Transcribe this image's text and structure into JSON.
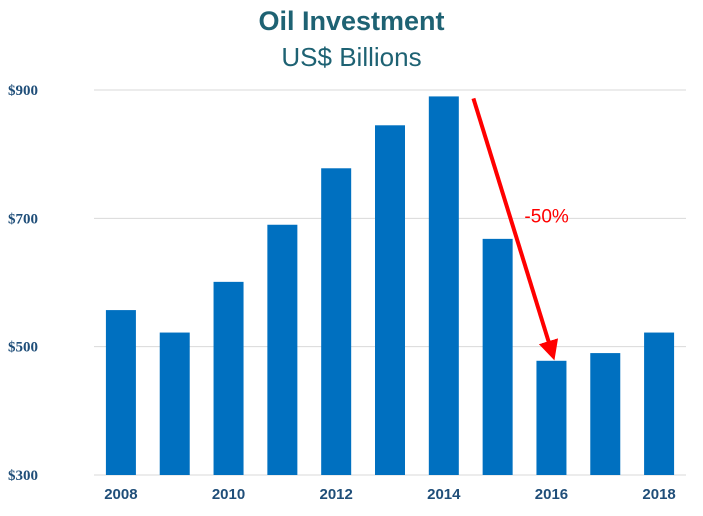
{
  "chart_data": {
    "type": "bar",
    "title": "Oil Investment",
    "subtitle": "US$ Billions",
    "categories": [
      "2008",
      "2009",
      "2010",
      "2011",
      "2012",
      "2013",
      "2014",
      "2015",
      "2016",
      "2017",
      "2018"
    ],
    "values": [
      557,
      522,
      601,
      690,
      778,
      845,
      890,
      668,
      478,
      490,
      522
    ],
    "ylim": [
      300,
      900
    ],
    "yticks": [
      300,
      500,
      700,
      900
    ],
    "ytick_labels": [
      "$300",
      "$500",
      "$700",
      "$900"
    ],
    "xtick_labels": [
      "2008",
      "",
      "2010",
      "",
      "2012",
      "",
      "2014",
      "",
      "2016",
      "",
      "2018"
    ],
    "bar_color": "#0070c0",
    "grid": true,
    "annotation": {
      "text": "-50%",
      "from": "2014",
      "to": "2016",
      "color": "#ff0000"
    }
  }
}
